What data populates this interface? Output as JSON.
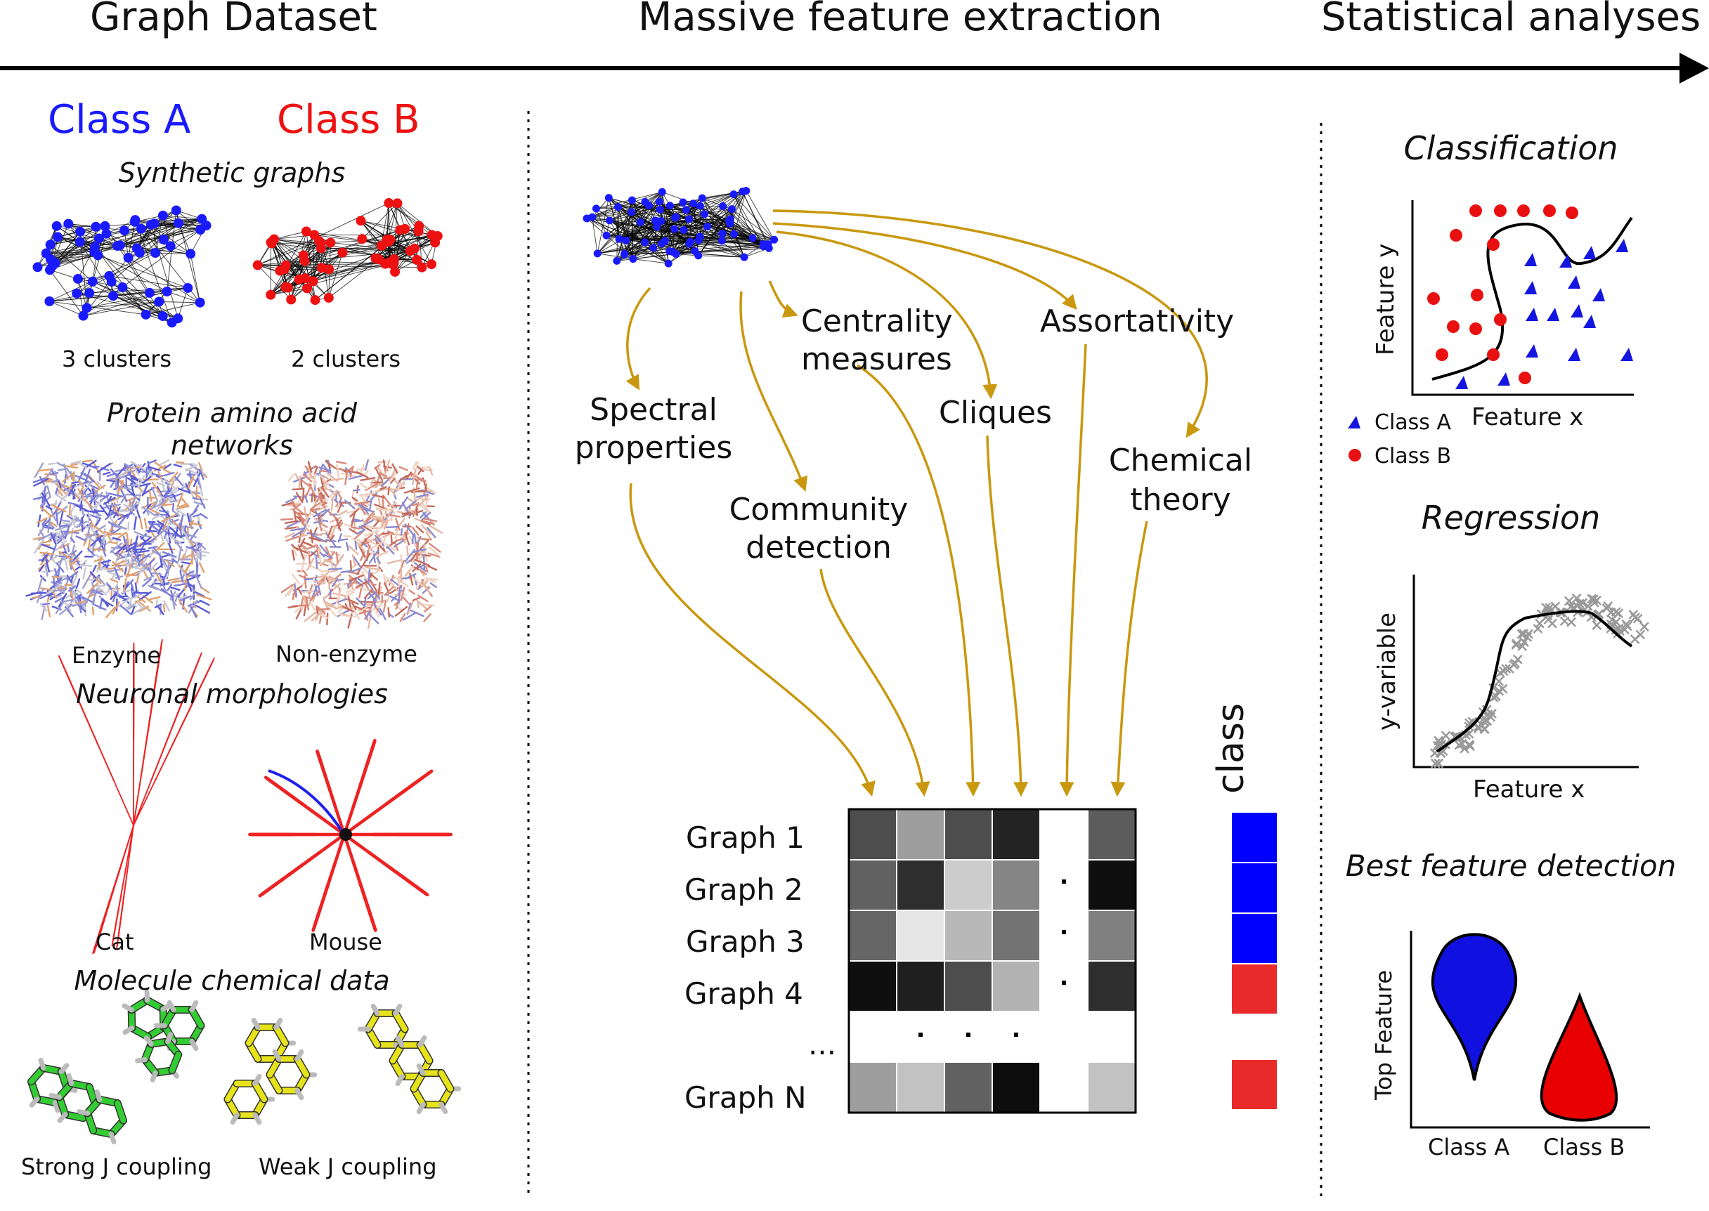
{
  "header": {
    "stage1": "Graph Dataset",
    "stage2": "Massive feature extraction",
    "stage3": "Statistical analyses"
  },
  "dataset": {
    "class_a": "Class A",
    "class_b": "Class B",
    "class_a_color": "#1a1aff",
    "class_b_color": "#ee1111",
    "sections": [
      {
        "title": "Synthetic graphs",
        "left_label": "3 clusters",
        "right_label": "2 clusters"
      },
      {
        "title_line1": "Protein amino acid",
        "title_line2": "networks",
        "left_label": "Enzyme",
        "right_label": "Non-enzyme"
      },
      {
        "title": "Neuronal morphologies",
        "left_label": "Cat",
        "right_label": "Mouse"
      },
      {
        "title": "Molecule chemical data",
        "left_label": "Strong J coupling",
        "right_label": "Weak J coupling"
      }
    ]
  },
  "features": {
    "spectral": [
      "Spectral",
      "properties"
    ],
    "centrality": [
      "Centrality",
      "measures"
    ],
    "community": [
      "Community",
      "detection"
    ],
    "cliques": "Cliques",
    "assortativity": "Assortativity",
    "chemical": [
      "Chemical",
      "theory"
    ],
    "arrow_color": "#c9980f",
    "class_header": "class",
    "rows": [
      "Graph 1",
      "Graph 2",
      "Graph 3",
      "Graph 4",
      "...",
      "Graph N"
    ],
    "matrix": [
      [
        0.3,
        0.62,
        0.3,
        0.14,
        1.0,
        0.36
      ],
      [
        0.38,
        0.18,
        0.8,
        0.52,
        1.0,
        0.06
      ],
      [
        0.4,
        0.9,
        0.72,
        0.45,
        1.0,
        0.5
      ],
      [
        0.06,
        0.12,
        0.3,
        0.7,
        1.0,
        0.18
      ],
      [
        1.0,
        1.0,
        1.0,
        1.0,
        1.0,
        1.0
      ],
      [
        0.62,
        0.76,
        0.38,
        0.05,
        1.0,
        0.76
      ]
    ],
    "row_classes": [
      "A",
      "A",
      "A",
      "B",
      "",
      "B"
    ],
    "ellipsis": "..."
  },
  "analysis": {
    "classification": {
      "title": "Classification",
      "xlabel": "Feature x",
      "ylabel": "Feature y",
      "legend_a": "Class A",
      "legend_b": "Class B"
    },
    "regression": {
      "title": "Regression",
      "xlabel": "Feature x",
      "ylabel": "y-variable"
    },
    "best": {
      "title": "Best feature detection",
      "ylabel": "Top Feature",
      "cat_a": "Class A",
      "cat_b": "Class B"
    }
  }
}
